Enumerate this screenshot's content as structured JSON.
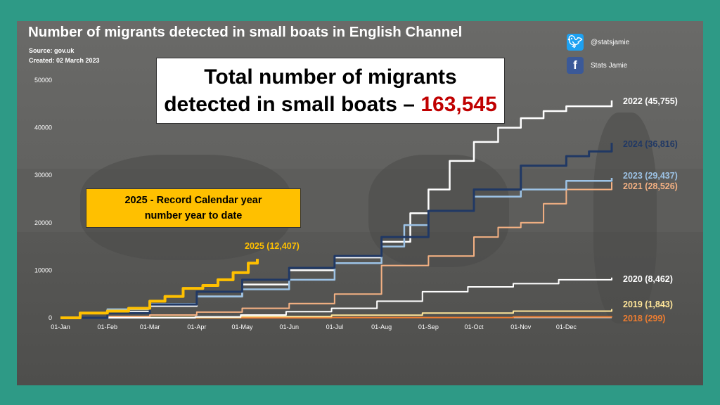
{
  "title": "Number of migrants detected in small boats in English Channel",
  "source": "Source: gov.uk",
  "created": "Created: 02 March 2023",
  "social": {
    "twitter_handle": "@statsjamie",
    "facebook_name": "Stats Jamie",
    "twitter_icon": "twitter-bird-icon",
    "facebook_icon": "facebook-f-icon"
  },
  "callout": {
    "line1": "Total number of migrants",
    "line2": "detected in small boats –",
    "total": "163,545"
  },
  "record_box": {
    "line1": "2025 - Record Calendar year",
    "line2": "number year to date"
  },
  "chart_data": {
    "type": "line",
    "x_unit": "day of year",
    "xticks": [
      {
        "day": 1,
        "label": "01-Jan"
      },
      {
        "day": 32,
        "label": "01-Feb"
      },
      {
        "day": 60,
        "label": "01-Mar"
      },
      {
        "day": 91,
        "label": "01-Apr"
      },
      {
        "day": 121,
        "label": "01-May"
      },
      {
        "day": 152,
        "label": "01-Jun"
      },
      {
        "day": 182,
        "label": "01-Jul"
      },
      {
        "day": 213,
        "label": "01-Aug"
      },
      {
        "day": 244,
        "label": "01-Sep"
      },
      {
        "day": 274,
        "label": "01-Oct"
      },
      {
        "day": 305,
        "label": "01-Nov"
      },
      {
        "day": 335,
        "label": "01-Dec"
      }
    ],
    "xlim": [
      1,
      365
    ],
    "ylim": [
      0,
      50000
    ],
    "yticks": [
      0,
      10000,
      20000,
      30000,
      40000,
      50000
    ],
    "series": [
      {
        "name": "2018",
        "label": "2018 (299)",
        "color": "#ed7d31",
        "width": 2,
        "points": [
          [
            1,
            0
          ],
          [
            180,
            50
          ],
          [
            300,
            200
          ],
          [
            365,
            299
          ]
        ]
      },
      {
        "name": "2019",
        "label": "2019 (1,843)",
        "color": "#ffe699",
        "width": 2,
        "points": [
          [
            1,
            0
          ],
          [
            60,
            100
          ],
          [
            120,
            250
          ],
          [
            180,
            550
          ],
          [
            240,
            1000
          ],
          [
            300,
            1400
          ],
          [
            365,
            1843
          ]
        ]
      },
      {
        "name": "2020",
        "label": "2020 (8,462)",
        "color": "#ffffff",
        "width": 2,
        "points": [
          [
            1,
            0
          ],
          [
            90,
            200
          ],
          [
            120,
            600
          ],
          [
            150,
            1300
          ],
          [
            180,
            2000
          ],
          [
            210,
            3500
          ],
          [
            240,
            5500
          ],
          [
            270,
            6500
          ],
          [
            300,
            7200
          ],
          [
            330,
            8000
          ],
          [
            365,
            8462
          ]
        ]
      },
      {
        "name": "2021",
        "label": "2021 (28,526)",
        "color": "#f4b183",
        "width": 2,
        "points": [
          [
            1,
            0
          ],
          [
            32,
            300
          ],
          [
            60,
            600
          ],
          [
            91,
            1200
          ],
          [
            121,
            2000
          ],
          [
            152,
            3000
          ],
          [
            182,
            5000
          ],
          [
            213,
            11000
          ],
          [
            244,
            13000
          ],
          [
            274,
            17000
          ],
          [
            290,
            19000
          ],
          [
            305,
            20000
          ],
          [
            320,
            24000
          ],
          [
            335,
            27000
          ],
          [
            365,
            28526
          ]
        ]
      },
      {
        "name": "2022",
        "label": "2022 (45,755)",
        "color": "#ffffff",
        "width": 2.5,
        "points": [
          [
            1,
            0
          ],
          [
            32,
            1300
          ],
          [
            60,
            2500
          ],
          [
            91,
            4500
          ],
          [
            121,
            7000
          ],
          [
            152,
            10000
          ],
          [
            182,
            12700
          ],
          [
            213,
            16000
          ],
          [
            232,
            22000
          ],
          [
            244,
            27000
          ],
          [
            258,
            33000
          ],
          [
            274,
            37000
          ],
          [
            290,
            40000
          ],
          [
            305,
            42000
          ],
          [
            320,
            43500
          ],
          [
            335,
            44500
          ],
          [
            365,
            45755
          ]
        ]
      },
      {
        "name": "2023",
        "label": "2023 (29,437)",
        "color": "#9dc3e6",
        "width": 2.5,
        "points": [
          [
            1,
            0
          ],
          [
            32,
            1800
          ],
          [
            60,
            2900
          ],
          [
            91,
            4500
          ],
          [
            121,
            6000
          ],
          [
            152,
            8000
          ],
          [
            182,
            11500
          ],
          [
            213,
            15000
          ],
          [
            228,
            19500
          ],
          [
            244,
            22500
          ],
          [
            274,
            25500
          ],
          [
            305,
            27000
          ],
          [
            335,
            28800
          ],
          [
            365,
            29437
          ]
        ]
      },
      {
        "name": "2024",
        "label": "2024 (36,816)",
        "color": "#203864",
        "width": 3,
        "points": [
          [
            1,
            0
          ],
          [
            32,
            1000
          ],
          [
            60,
            2800
          ],
          [
            91,
            5500
          ],
          [
            121,
            8000
          ],
          [
            152,
            10500
          ],
          [
            182,
            13000
          ],
          [
            213,
            17000
          ],
          [
            244,
            22500
          ],
          [
            274,
            27000
          ],
          [
            305,
            32000
          ],
          [
            335,
            34000
          ],
          [
            350,
            35000
          ],
          [
            365,
            36816
          ]
        ]
      },
      {
        "name": "2025",
        "label": "2025 (12,407)",
        "color": "#ffc000",
        "width": 4,
        "points": [
          [
            1,
            0
          ],
          [
            14,
            1000
          ],
          [
            32,
            1400
          ],
          [
            46,
            2000
          ],
          [
            60,
            3500
          ],
          [
            70,
            4500
          ],
          [
            82,
            6200
          ],
          [
            95,
            6800
          ],
          [
            105,
            8000
          ],
          [
            115,
            9500
          ],
          [
            125,
            11500
          ],
          [
            131,
            12407
          ]
        ]
      }
    ]
  }
}
